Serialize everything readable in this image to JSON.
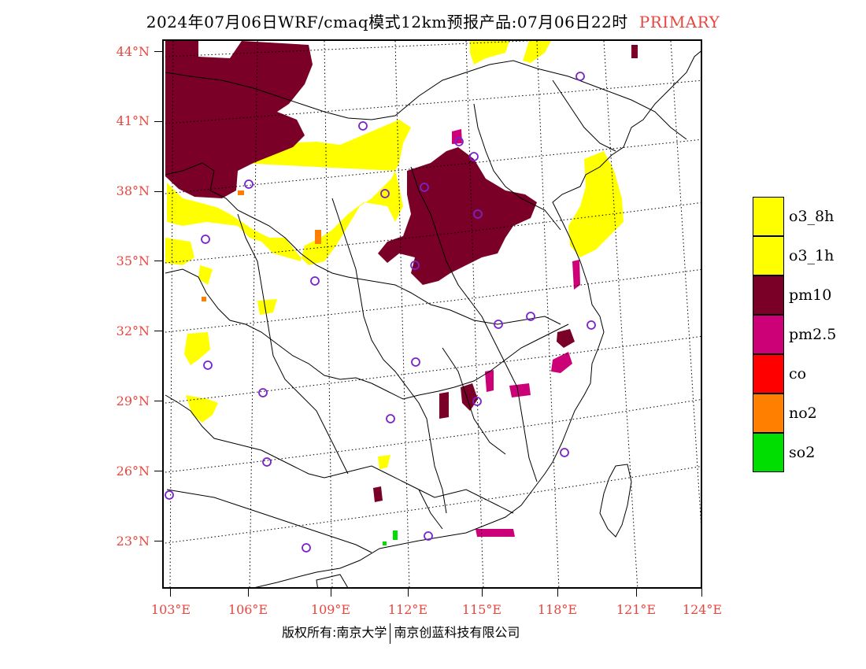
{
  "title": {
    "main": "2024年07月06日WRF/cmaq模式12km预报产品:07月06日22时",
    "tag": "PRIMARY"
  },
  "colors": {
    "title_tag": "#e8463f",
    "axis_labels": "#e8463f",
    "o3_8h": "#ffff00",
    "o3_1h": "#ffff00",
    "pm10": "#7a0028",
    "pm2_5": "#cc0077",
    "co": "#ff0000",
    "no2": "#ff7f00",
    "so2": "#00dd00",
    "station_marker": "#7a22cc"
  },
  "latitude_labels": [
    "44°N",
    "41°N",
    "38°N",
    "35°N",
    "32°N",
    "29°N",
    "26°N",
    "23°N"
  ],
  "longitude_labels": [
    "103°E",
    "106°E",
    "109°E",
    "112°E",
    "115°E",
    "118°E",
    "121°E",
    "124°E"
  ],
  "legend": [
    {
      "label": "o3_8h",
      "color": "#ffff00"
    },
    {
      "label": "o3_1h",
      "color": "#ffff00"
    },
    {
      "label": "pm10",
      "color": "#7a0028"
    },
    {
      "label": "pm2.5",
      "color": "#cc0077"
    },
    {
      "label": "co",
      "color": "#ff0000"
    },
    {
      "label": "no2",
      "color": "#ff7f00"
    },
    {
      "label": "so2",
      "color": "#00dd00"
    }
  ],
  "footer": {
    "left": "版权所有:南京大学",
    "right": "南京创蓝科技有限公司"
  }
}
